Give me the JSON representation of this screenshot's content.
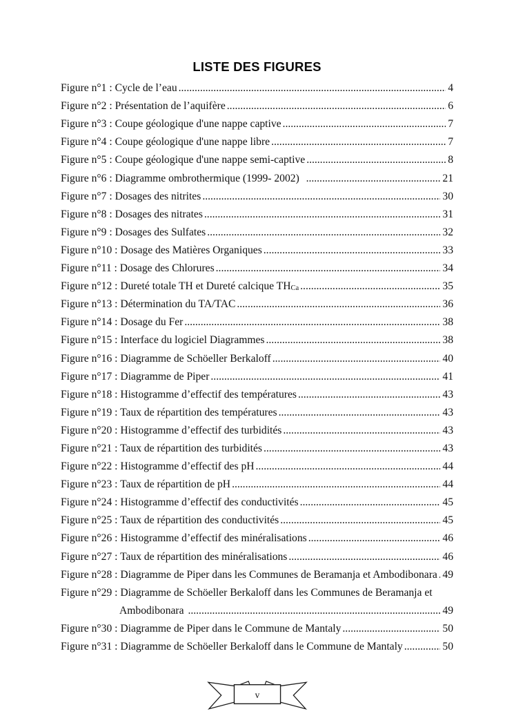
{
  "document": {
    "title": "LISTE DES FIGURES",
    "footer": {
      "page_number": "v"
    }
  },
  "entries": [
    {
      "label": "Figure n°1 : Cycle de l’eau",
      "page": "4"
    },
    {
      "label": "Figure n°2 : Présentation de l’aquifère",
      "page": "6"
    },
    {
      "label": "Figure n°3 : Coupe géologique d'une nappe captive",
      "page": "7"
    },
    {
      "label": "Figure n°4 : Coupe géologique d'une nappe libre",
      "page": "7"
    },
    {
      "label": "Figure n°5 : Coupe géologique d'une nappe semi-captive",
      "page": "8"
    },
    {
      "label": "Figure n°6 : Diagramme ombrothermique (1999- 2002)  ",
      "page": "21"
    },
    {
      "label": "Figure n°7 : Dosages des nitrites",
      "page": "30"
    },
    {
      "label": "Figure n°8 : Dosages des nitrates",
      "page": "31"
    },
    {
      "label": "Figure n°9 : Dosages des Sulfates",
      "page": "32"
    },
    {
      "label": "Figure n°10 : Dosage des Matières Organiques",
      "page": "33"
    },
    {
      "label": "Figure n°11 : Dosage des Chlorures",
      "page": "34"
    },
    {
      "label": "Figure n°12 : Dureté totale TH et Dureté calcique TH",
      "subscript": "Ca",
      "page": "35"
    },
    {
      "label": "Figure n°13 : Détermination du TA/TAC",
      "page": "36"
    },
    {
      "label": "Figure n°14 : Dosage du Fer",
      "page": "38"
    },
    {
      "label": "Figure n°15 : Interface du logiciel Diagrammes",
      "page": "38"
    },
    {
      "label": "Figure n°16 : Diagramme de Schöeller Berkaloff",
      "page": "40"
    },
    {
      "label": "Figure n°17 : Diagramme de Piper",
      "page": "41"
    },
    {
      "label": "Figure n°18 : Histogramme d’effectif des températures",
      "page": "43"
    },
    {
      "label": "Figure n°19 : Taux de répartition des températures",
      "page": "43"
    },
    {
      "label": "Figure n°20 : Histogramme d’effectif des turbidités",
      "page": "43"
    },
    {
      "label": "Figure n°21 : Taux de répartition des turbidités",
      "page": "43"
    },
    {
      "label": "Figure n°22 : Histogramme d’effectif des pH",
      "page": "44"
    },
    {
      "label": "Figure n°23 : Taux de répartition de pH",
      "page": "44"
    },
    {
      "label": "Figure n°24 : Histogramme d’effectif des conductivités",
      "page": "45"
    },
    {
      "label": "Figure n°25 : Taux de répartition des conductivités",
      "page": "45"
    },
    {
      "label": "Figure n°26 : Histogramme d’effectif des minéralisations",
      "page": "46"
    },
    {
      "label": "Figure n°27 : Taux de répartition des minéralisations",
      "page": "46"
    },
    {
      "label": "Figure n°28 : Diagramme de Piper dans les Communes de Beramanja et Ambodibonara",
      "page": "49"
    },
    {
      "label": "Figure n°29 : Diagramme de Schöeller Berkaloff dans les Communes de Beramanja et",
      "page": ""
    },
    {
      "label": "Ambodibonara ",
      "page": "49",
      "indent": true
    },
    {
      "label": "Figure n°30 : Diagramme de Piper dans le Commune de Mantaly",
      "page": "50"
    },
    {
      "label": "Figure n°31 : Diagramme de Schöeller Berkaloff dans le Commune de Mantaly",
      "page": "50"
    }
  ]
}
